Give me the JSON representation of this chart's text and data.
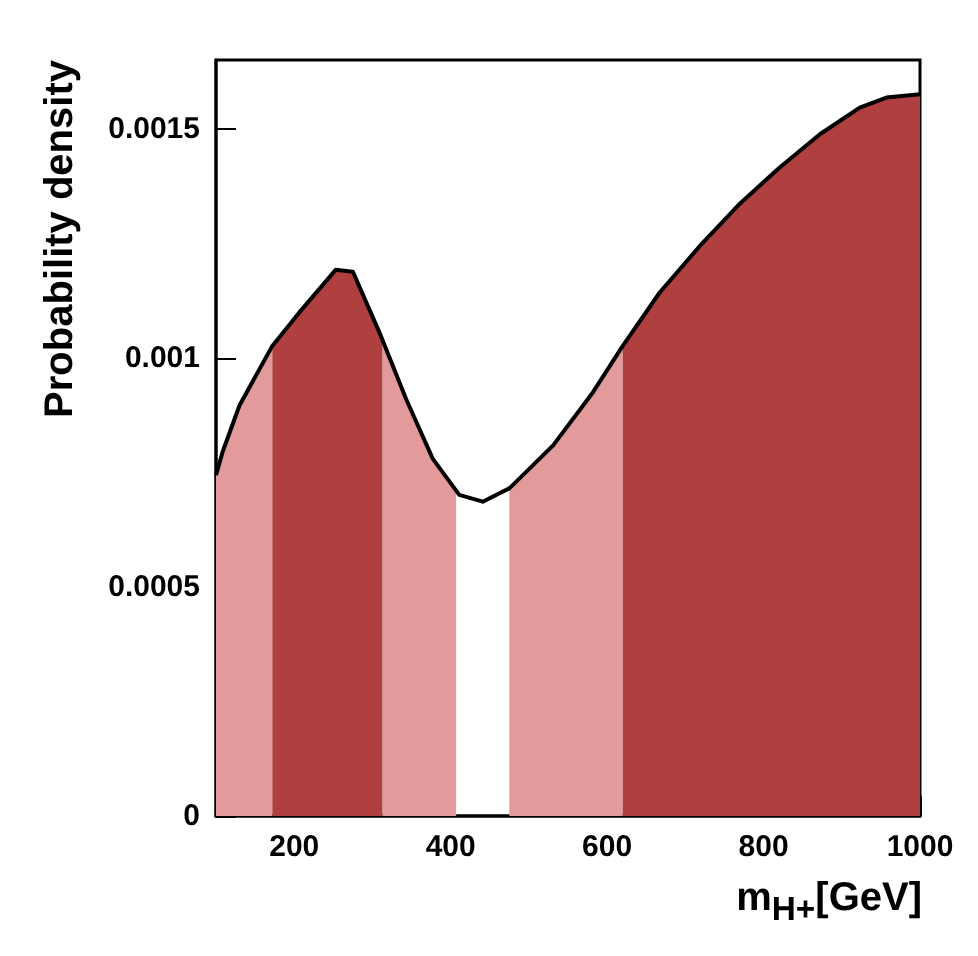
{
  "chart_data": {
    "type": "area",
    "xlabel": "m$_{H+}$[GeV]",
    "ylabel": "Probability density",
    "xlim": [
      100,
      1000
    ],
    "ylim": [
      0,
      0.00165
    ],
    "xticks": [
      200,
      400,
      600,
      800,
      1000
    ],
    "yticks": [
      0,
      0.0005,
      0.001,
      0.0015
    ],
    "grid": false,
    "marker": "none",
    "line_style": "solid",
    "series": [
      {
        "type": "area",
        "color": "#e39a9a",
        "x": [
          100,
          108.5,
          130,
          172
        ],
        "values": [
          0.000744,
          0.000795,
          0.000896,
          0.001026
        ]
      },
      {
        "type": "area",
        "color": "#b03f40",
        "x": [
          172,
          206,
          253,
          275,
          309,
          313
        ],
        "values": [
          0.001026,
          0.001098,
          0.001192,
          0.001188,
          0.001055,
          0.00104
        ]
      },
      {
        "type": "area",
        "color": "#e39a9a",
        "x": [
          313,
          343,
          377,
          407
        ],
        "values": [
          0.00104,
          0.00091,
          0.00078,
          0.00071
        ]
      },
      {
        "type": "area",
        "color": "#e39a9a",
        "x": [
          475,
          531,
          582,
          620
        ],
        "values": [
          0.000715,
          0.000809,
          0.000925,
          0.001026
        ]
      },
      {
        "type": "area",
        "color": "#b03f40",
        "x": [
          620,
          667,
          718,
          770,
          821,
          872,
          923,
          957,
          1000
        ],
        "values": [
          0.001026,
          0.001142,
          0.001243,
          0.001337,
          0.001416,
          0.001488,
          0.001546,
          0.001568,
          0.001575
        ]
      },
      {
        "type": "line",
        "color": "#000000",
        "x": [
          100,
          108.5,
          130,
          172,
          206,
          253,
          275,
          309,
          343,
          377,
          411,
          441,
          475,
          531,
          582,
          620,
          667,
          718,
          770,
          821,
          872,
          923,
          957,
          1000
        ],
        "values": [
          0.000744,
          0.000795,
          0.000896,
          0.001026,
          0.001098,
          0.001192,
          0.001188,
          0.001055,
          0.00091,
          0.00078,
          0.000701,
          0.000686,
          0.000715,
          0.000809,
          0.000925,
          0.001026,
          0.001142,
          0.001243,
          0.001337,
          0.001416,
          0.001488,
          0.001546,
          0.001568,
          0.001575
        ]
      }
    ]
  }
}
